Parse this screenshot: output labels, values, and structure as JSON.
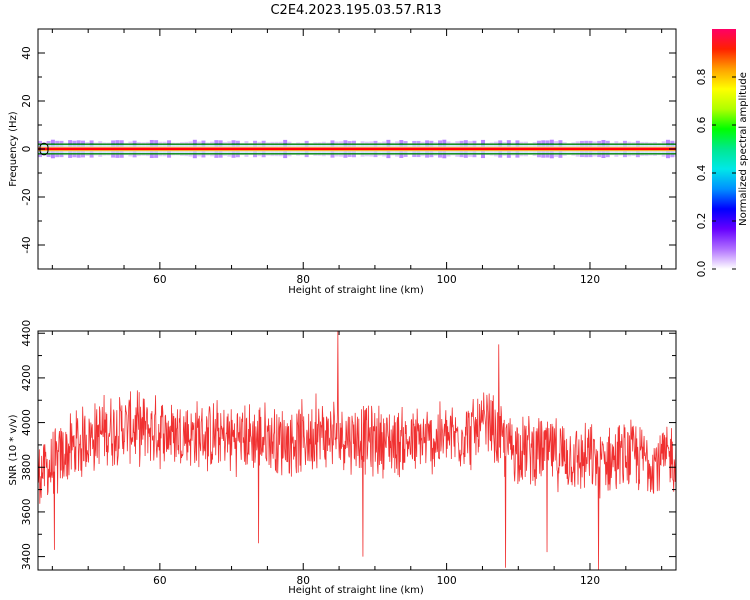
{
  "title": "C2E4.2023.195.03.57.R13",
  "chart_data": [
    {
      "type": "heatmap",
      "xlabel": "Height of straight line (km)",
      "ylabel": "Frequency (Hz)",
      "xlim": [
        43,
        132
      ],
      "ylim": [
        -50,
        50
      ],
      "x_ticks": [
        60,
        80,
        100,
        120
      ],
      "y_ticks": [
        -40,
        -20,
        0,
        20,
        40
      ],
      "band_center_hz": 0,
      "band_halfwidth_hz": 2,
      "colorbar": {
        "label": "Normalized spectral amplitude",
        "range": [
          0,
          1
        ],
        "ticks": [
          "0.0",
          "0.2",
          "0.4",
          "0.6",
          "0.8"
        ],
        "colors": [
          "#ffffff",
          "#b070ff",
          "#6600ff",
          "#0000ff",
          "#0090ff",
          "#00e8e8",
          "#00e890",
          "#00ff00",
          "#b0ff00",
          "#ffff00",
          "#ffa000",
          "#ff2000",
          "#ff0066"
        ]
      },
      "line_colors": {
        "center": "#ff0000",
        "edges": "#008800",
        "outline": "#000000"
      }
    },
    {
      "type": "line",
      "xlabel": "Height of straight line (km)",
      "ylabel": "SNR (10 * v/v)",
      "xlim": [
        43,
        132
      ],
      "ylim": [
        3340,
        4410
      ],
      "x_ticks": [
        60,
        80,
        100,
        120
      ],
      "y_ticks": [
        3400,
        3600,
        3800,
        4000,
        4200,
        4400
      ],
      "line_color": "#f03030",
      "series": [
        {
          "x": [
            43,
            45,
            47,
            50,
            53,
            56,
            60,
            63,
            66,
            70,
            74,
            78,
            82,
            85,
            88,
            92,
            96,
            100,
            104,
            106,
            108,
            110,
            114,
            118,
            122,
            126,
            129,
            132
          ],
          "y": [
            3780,
            3800,
            3870,
            3930,
            3970,
            3980,
            3960,
            3950,
            3940,
            3930,
            3930,
            3920,
            3940,
            3950,
            3930,
            3920,
            3910,
            3930,
            3960,
            3990,
            3900,
            3890,
            3870,
            3840,
            3830,
            3850,
            3830,
            3850
          ]
        }
      ],
      "noise_amplitude": 180,
      "notable_points": [
        {
          "x": 84.8,
          "y": 4410
        },
        {
          "x": 81.8,
          "y": 4130
        },
        {
          "x": 107.3,
          "y": 4350
        },
        {
          "x": 108.2,
          "y": 3350
        },
        {
          "x": 114,
          "y": 3420
        },
        {
          "x": 121.2,
          "y": 3340
        },
        {
          "x": 88.3,
          "y": 3400
        },
        {
          "x": 73.8,
          "y": 3460
        },
        {
          "x": 45.3,
          "y": 3430
        }
      ]
    }
  ]
}
